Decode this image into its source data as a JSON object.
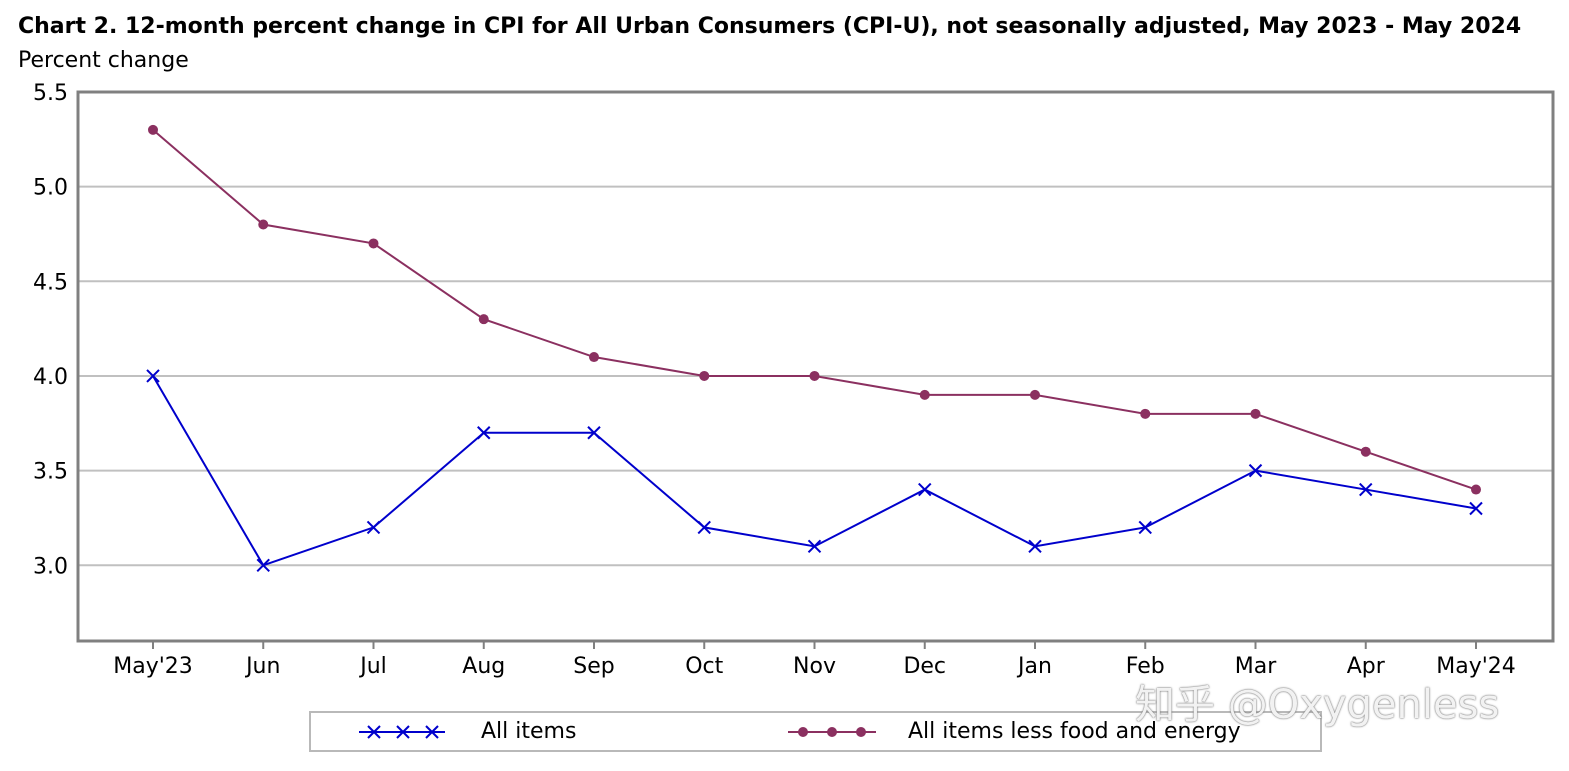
{
  "chart_data": {
    "type": "line",
    "title": "Chart 2. 12-month percent change in CPI for All Urban Consumers (CPI-U), not seasonally adjusted, May 2023 - May 2024",
    "ylabel": "Percent change",
    "xlabel": "",
    "categories": [
      "May'23",
      "Jun",
      "Jul",
      "Aug",
      "Sep",
      "Oct",
      "Nov",
      "Dec",
      "Jan",
      "Feb",
      "Mar",
      "Apr",
      "May'24"
    ],
    "ylim": [
      2.6,
      5.5
    ],
    "yticks": [
      3.0,
      3.5,
      4.0,
      4.5,
      5.0,
      5.5
    ],
    "ytick_labels": [
      "3.0",
      "3.5",
      "4.0",
      "4.5",
      "5.0",
      "5.5"
    ],
    "grid": true,
    "legend_position": "bottom",
    "series": [
      {
        "name": "All items",
        "color": "#0000cc",
        "marker": "x",
        "values": [
          4.0,
          3.0,
          3.2,
          3.7,
          3.7,
          3.2,
          3.1,
          3.4,
          3.1,
          3.2,
          3.5,
          3.4,
          3.3
        ]
      },
      {
        "name": "All items less food and energy",
        "color": "#8b3060",
        "marker": "circle",
        "values": [
          5.3,
          4.8,
          4.7,
          4.3,
          4.1,
          4.0,
          4.0,
          3.9,
          3.9,
          3.8,
          3.8,
          3.6,
          3.4
        ]
      }
    ]
  },
  "watermark": "知乎 @Oxygenless"
}
